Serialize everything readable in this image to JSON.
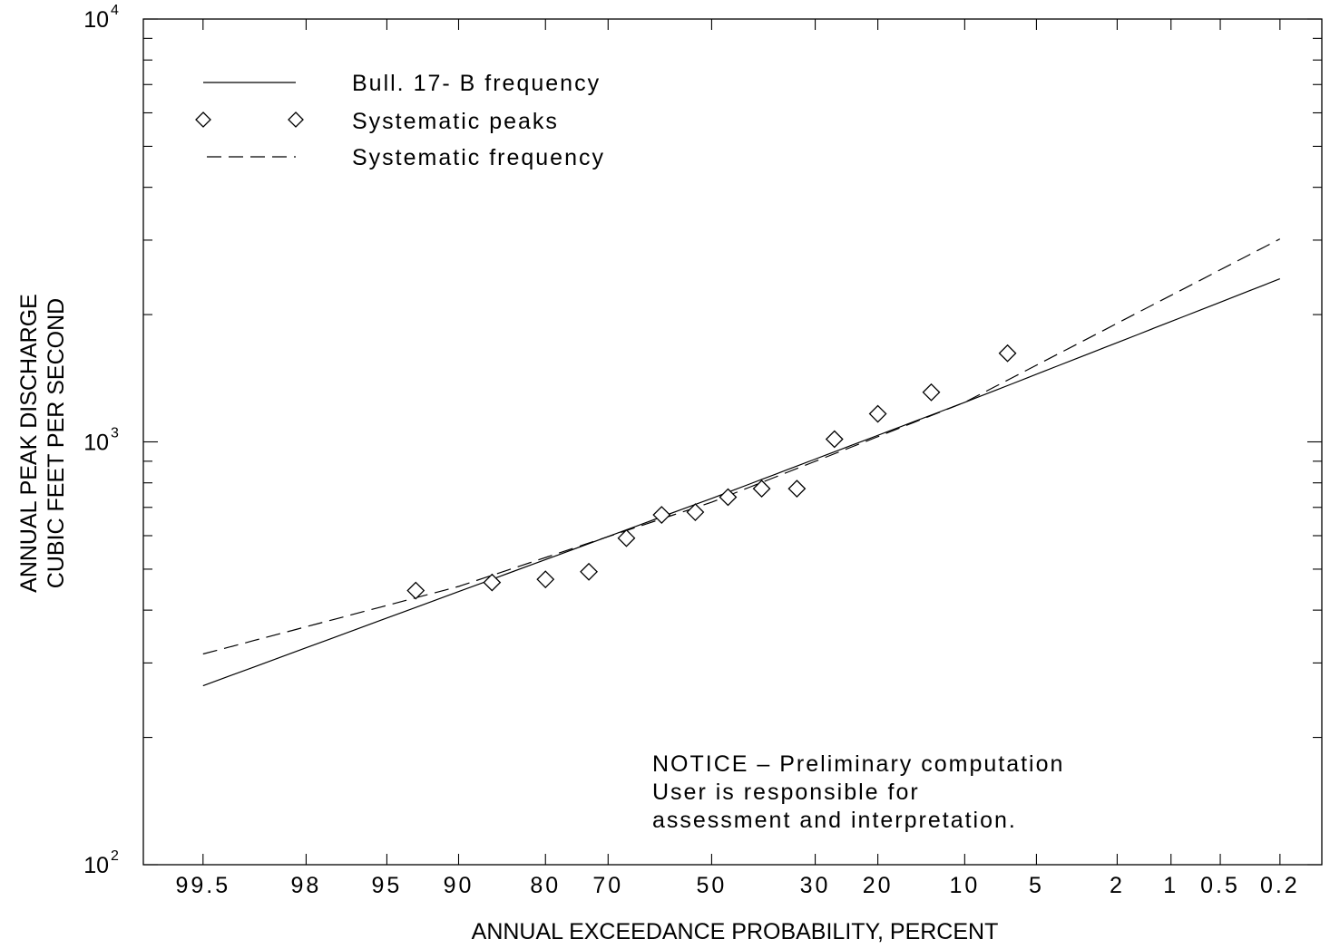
{
  "chart_data": {
    "type": "line",
    "xlabel": "ANNUAL EXCEEDANCE PROBABILITY, PERCENT",
    "ylabel_lines": [
      "ANNUAL PEAK DISCHARGE",
      "CUBIC FEET PER SECOND"
    ],
    "x_scale": "normal-probability (reversed)",
    "y_scale": "log",
    "ylim": [
      100,
      10000
    ],
    "xlim": [
      99.8,
      0.1
    ],
    "x_ticks": [
      99.5,
      98,
      95,
      90,
      80,
      70,
      50,
      30,
      20,
      10,
      5,
      2,
      1,
      0.5,
      0.2
    ],
    "x_tick_labels": [
      "99.5",
      "98",
      "95",
      "90",
      "80",
      "70",
      "50",
      "30",
      "20",
      "10",
      "5",
      "2",
      "1",
      "0.5",
      "0.2"
    ],
    "y_ticks": [
      {
        "value": 100,
        "base": "10",
        "exp": "2"
      },
      {
        "value": 1000,
        "base": "10",
        "exp": "3"
      },
      {
        "value": 10000,
        "base": "10",
        "exp": "4"
      }
    ],
    "legend": {
      "placement": "top-left",
      "entries": [
        {
          "label": "Bull. 17- B frequency",
          "style": "solid"
        },
        {
          "label": "Systematic peaks",
          "style": "diamond"
        },
        {
          "label": "Systematic frequency",
          "style": "dashed"
        }
      ]
    },
    "series": [
      {
        "name": "Bull. 17- B frequency",
        "style": "solid",
        "x": [
          99.5,
          50,
          10,
          0.2
        ],
        "y": [
          265,
          735,
          1240,
          2430
        ]
      },
      {
        "name": "Systematic frequency",
        "style": "dashed",
        "x": [
          99.5,
          90,
          50,
          10,
          0.2
        ],
        "y": [
          315,
          455,
          720,
          1240,
          3020
        ]
      },
      {
        "name": "Systematic peaks",
        "style": "diamond",
        "x": [
          93.3,
          86.7,
          80.0,
          73.3,
          66.7,
          60.0,
          53.3,
          46.7,
          40.0,
          33.3,
          26.7,
          20.0,
          13.3,
          6.7
        ],
        "y": [
          445,
          465,
          473,
          493,
          592,
          672,
          682,
          740,
          775,
          775,
          1015,
          1165,
          1310,
          1620
        ]
      }
    ],
    "annotation": [
      "NOTICE –  Preliminary computation",
      "User is responsible for",
      "assessment and interpretation."
    ]
  }
}
